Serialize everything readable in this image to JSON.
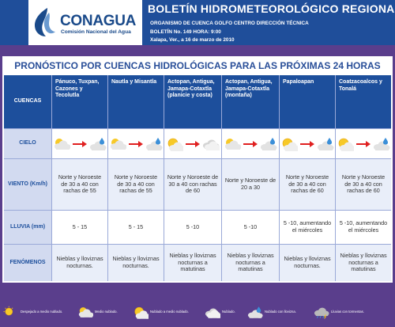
{
  "header": {
    "logo_name": "CONAGUA",
    "logo_subtitle": "Comisión Nacional del Agua",
    "title": "BOLETÍN  HIDROMETEOROLÓGICO REGIONAL",
    "org_line": "ORGANISMO DE CUENCA GOLFO CENTRO DIRECCIÓN TÉCNICA",
    "bulletin_line": "BOLETÍN No. 149 HORA: 9:00",
    "date_line": "Xalapa, Ver., a 16 de marzo de 2010",
    "colors": {
      "bar": "#1f4e9a",
      "accent": "#1a4a8a"
    }
  },
  "forecast": {
    "subtitle": "PRONÓSTICO POR CUENCAS HIDROLÓGICAS PARA LAS PRÓXIMAS 24 HORAS",
    "row_labels": {
      "cuencas": "CUENCAS",
      "cielo": "CIELO",
      "viento": "VIENTO (Km/h)",
      "lluvia": "LLUVIA (mm)",
      "fenomenos": "FENÓMENOS"
    },
    "basins": [
      {
        "name": "Pánuco, Tuxpan, Cazones y Tecolutla",
        "sky_from": "partly-cloudy-icon",
        "sky_to": "cloudy-drizzle-icon",
        "wind": "Norte y Noroeste de 30 a 40 con rachas de 55",
        "rain": "5 - 15",
        "phenomena": "Nieblas y lloviznas nocturnas."
      },
      {
        "name": "Nautla y Misantla",
        "sky_from": "partly-cloudy-icon",
        "sky_to": "cloudy-drizzle-icon",
        "wind": "Norte y Noroeste de 30 a 40 con rachas de 55",
        "rain": "5 - 15",
        "phenomena": "Nieblas y lloviznas nocturnas."
      },
      {
        "name": "Actopan, Antigua, Jamapa-Cotaxtla (planicie y costa)",
        "sky_from": "mostly-sunny-icon",
        "sky_to": "cloudy-icon",
        "wind": "Norte y Noroeste de 30 a 40 con rachas de 60",
        "rain": "5 -10",
        "phenomena": "Nieblas y lloviznas nocturnas a matutinas"
      },
      {
        "name": "Actopan, Antigua, Jamapa-Cotaxtla (montaña)",
        "sky_from": "partly-cloudy-icon",
        "sky_to": "cloudy-drizzle-icon",
        "wind": "Norte y Noroeste de 20 a 30",
        "rain": "5 -10",
        "phenomena": "Nieblas y lloviznas nocturnas a matutinas"
      },
      {
        "name": "Papaloapan",
        "sky_from": "mostly-sunny-icon",
        "sky_to": "cloudy-drizzle-icon",
        "wind": "Norte y Noroeste de 30 a 40 con rachas de 60",
        "rain": "5 -10, aumentando el miércoles",
        "phenomena": "Nieblas y lloviznas nocturnas."
      },
      {
        "name": "Coatzacoalcos y Tonalá",
        "sky_from": "mostly-sunny-icon",
        "sky_to": "cloudy-drizzle-icon",
        "wind": "Norte y Noroeste de 30 a 40 con rachas de 60",
        "rain": "5 -10, aumentando el miércoles",
        "phenomena": "Nieblas y lloviznas nocturnas a matutinas"
      }
    ],
    "colors": {
      "header_cell": "#1d4f9c",
      "label_cell": "#d2daf0",
      "arrow": "#e02020"
    }
  },
  "legend": [
    {
      "icon": "sunny-icon",
      "label": "Despejado a medio nublado."
    },
    {
      "icon": "partly-cloudy-icon",
      "label": "Medio nublado."
    },
    {
      "icon": "mostly-sunny-icon",
      "label": "Nublado a medio nublado."
    },
    {
      "icon": "cloudy-icon",
      "label": "Nublado."
    },
    {
      "icon": "cloudy-drizzle-icon",
      "label": "Nublado con llovizna."
    },
    {
      "icon": "rain-storm-icon",
      "label": "Lluvias con tormentas."
    }
  ]
}
